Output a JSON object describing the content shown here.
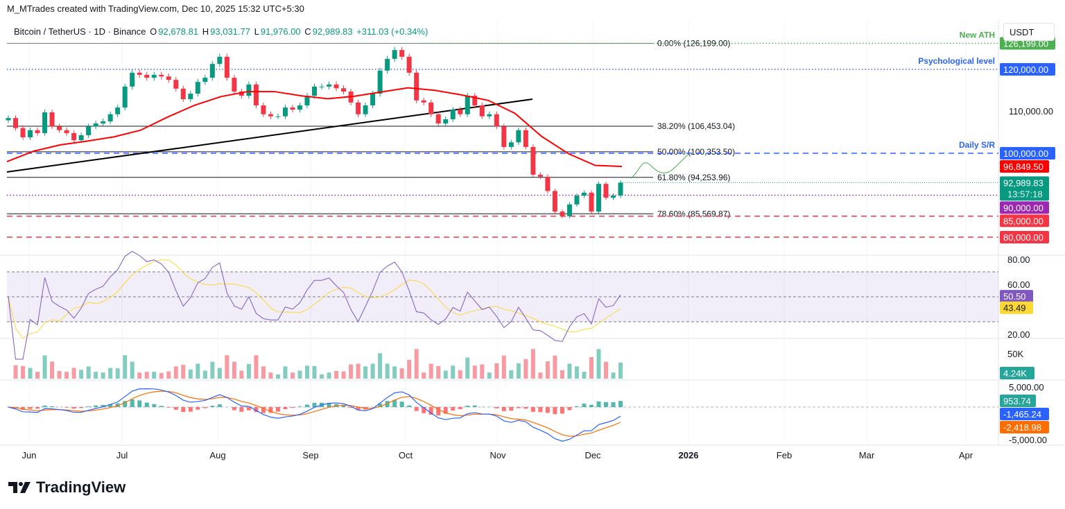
{
  "credit": "M_MTrades created with TradingView.com, Dec 10, 2025 15:32 UTC+5:30",
  "legend": {
    "symbol": "Bitcoin / TetherUS · 1D · Binance",
    "o_label": "O",
    "o": "92,678.81",
    "h_label": "H",
    "h": "93,031.77",
    "l_label": "L",
    "l": "91,976.00",
    "c_label": "C",
    "c": "92,989.83",
    "change": "+311.03 (+0.34%)"
  },
  "currency_button": "USDT",
  "logo_text": "TradingView",
  "colors": {
    "up": "#089981",
    "down": "#f23645",
    "sma": "#ff0000",
    "rsi": "#7e57c2",
    "rsi_ma": "#fdd835",
    "macd": "#2962ff",
    "signal": "#ff6d00"
  },
  "chart_data": {
    "type": "candlestick",
    "price_axis": {
      "ticks": [
        "110,000.00"
      ],
      "range": [
        78000,
        128000
      ]
    },
    "time_axis": [
      "Jun",
      "Jul",
      "Aug",
      "Sep",
      "Oct",
      "Nov",
      "Dec",
      "2026",
      "Feb",
      "Mar",
      "Apr"
    ],
    "closes": [
      108400,
      106000,
      103800,
      105500,
      104800,
      109750,
      106400,
      105500,
      104800,
      103100,
      104300,
      106400,
      107100,
      107600,
      109300,
      110900,
      115900,
      119200,
      118700,
      118000,
      118700,
      118300,
      117500,
      115400,
      112900,
      114200,
      117000,
      118000,
      121300,
      123000,
      118000,
      114700,
      113700,
      116400,
      111400,
      109300,
      108800,
      108800,
      110900,
      110400,
      111400,
      113700,
      115900,
      115900,
      116400,
      115500,
      114700,
      112100,
      109300,
      111400,
      114200,
      119700,
      122500,
      124600,
      123000,
      119200,
      112600,
      112100,
      109300,
      107100,
      108100,
      110400,
      109300,
      113700,
      111400,
      108800,
      109300,
      106400,
      101500,
      102600,
      105500,
      101500,
      94900,
      94400,
      91000,
      86100,
      85000,
      87800,
      89900,
      90600,
      86100,
      92700,
      89400,
      89900,
      92990
    ],
    "sma50": [
      98000,
      100500,
      102000,
      102900,
      103900,
      105500,
      108600,
      111400,
      113500,
      114700,
      114700,
      113700,
      113000,
      113600,
      114600,
      115600,
      115000,
      113900,
      112600,
      109500,
      104000,
      99900,
      97100,
      96849.5
    ],
    "levels": [
      {
        "price": 126199,
        "label": "0.00% (126,199.00)",
        "kind": "fib"
      },
      {
        "price": 106453.04,
        "label": "38.20% (106,453.04)",
        "kind": "fib"
      },
      {
        "price": 100353.5,
        "label": "50.00% (100,353.50)",
        "kind": "fib"
      },
      {
        "price": 94253.96,
        "label": "61.80% (94,253.96)",
        "kind": "fib"
      },
      {
        "price": 85569.87,
        "label": "78.60% (85,569.87)",
        "kind": "fib"
      }
    ],
    "hlines": [
      {
        "price": 126199,
        "note": "New ATH",
        "tag": "126,199.00",
        "color": "#4caf50",
        "style": "dotted"
      },
      {
        "price": 120000,
        "note": "Psychological level",
        "tag": "120,000.00",
        "color": "#2962ff",
        "style": "dotted"
      },
      {
        "price": 100000,
        "note": "Daily S/R",
        "tag": "100,000.00",
        "color": "#2962ff",
        "style": "dashed"
      },
      {
        "price": 90000,
        "note": "",
        "tag": "90,000.00",
        "color": "#9c27b0",
        "style": "dotted"
      },
      {
        "price": 85000,
        "note": "",
        "tag": "85,000.00",
        "color": "#f23645",
        "style": "dashed"
      },
      {
        "price": 80000,
        "note": "",
        "tag": "80,000.00",
        "color": "#f23645",
        "style": "dashed"
      }
    ],
    "sma_tag": "96,849.50",
    "last_price_tag": "92,989.83",
    "countdown": "13:57:18",
    "rsi": {
      "ticks": [
        "80.00",
        "60.00",
        "20.00"
      ],
      "value": "50.50",
      "ma_value": "43.49",
      "band": [
        30,
        70
      ]
    },
    "volume": {
      "tick": "50K",
      "value": "4.24K"
    },
    "macd": {
      "ticks": [
        "5,000.00",
        "-5,000.00"
      ],
      "hist": "953.74",
      "macd": "-1,465.24",
      "signal": "-2,418.98"
    }
  }
}
